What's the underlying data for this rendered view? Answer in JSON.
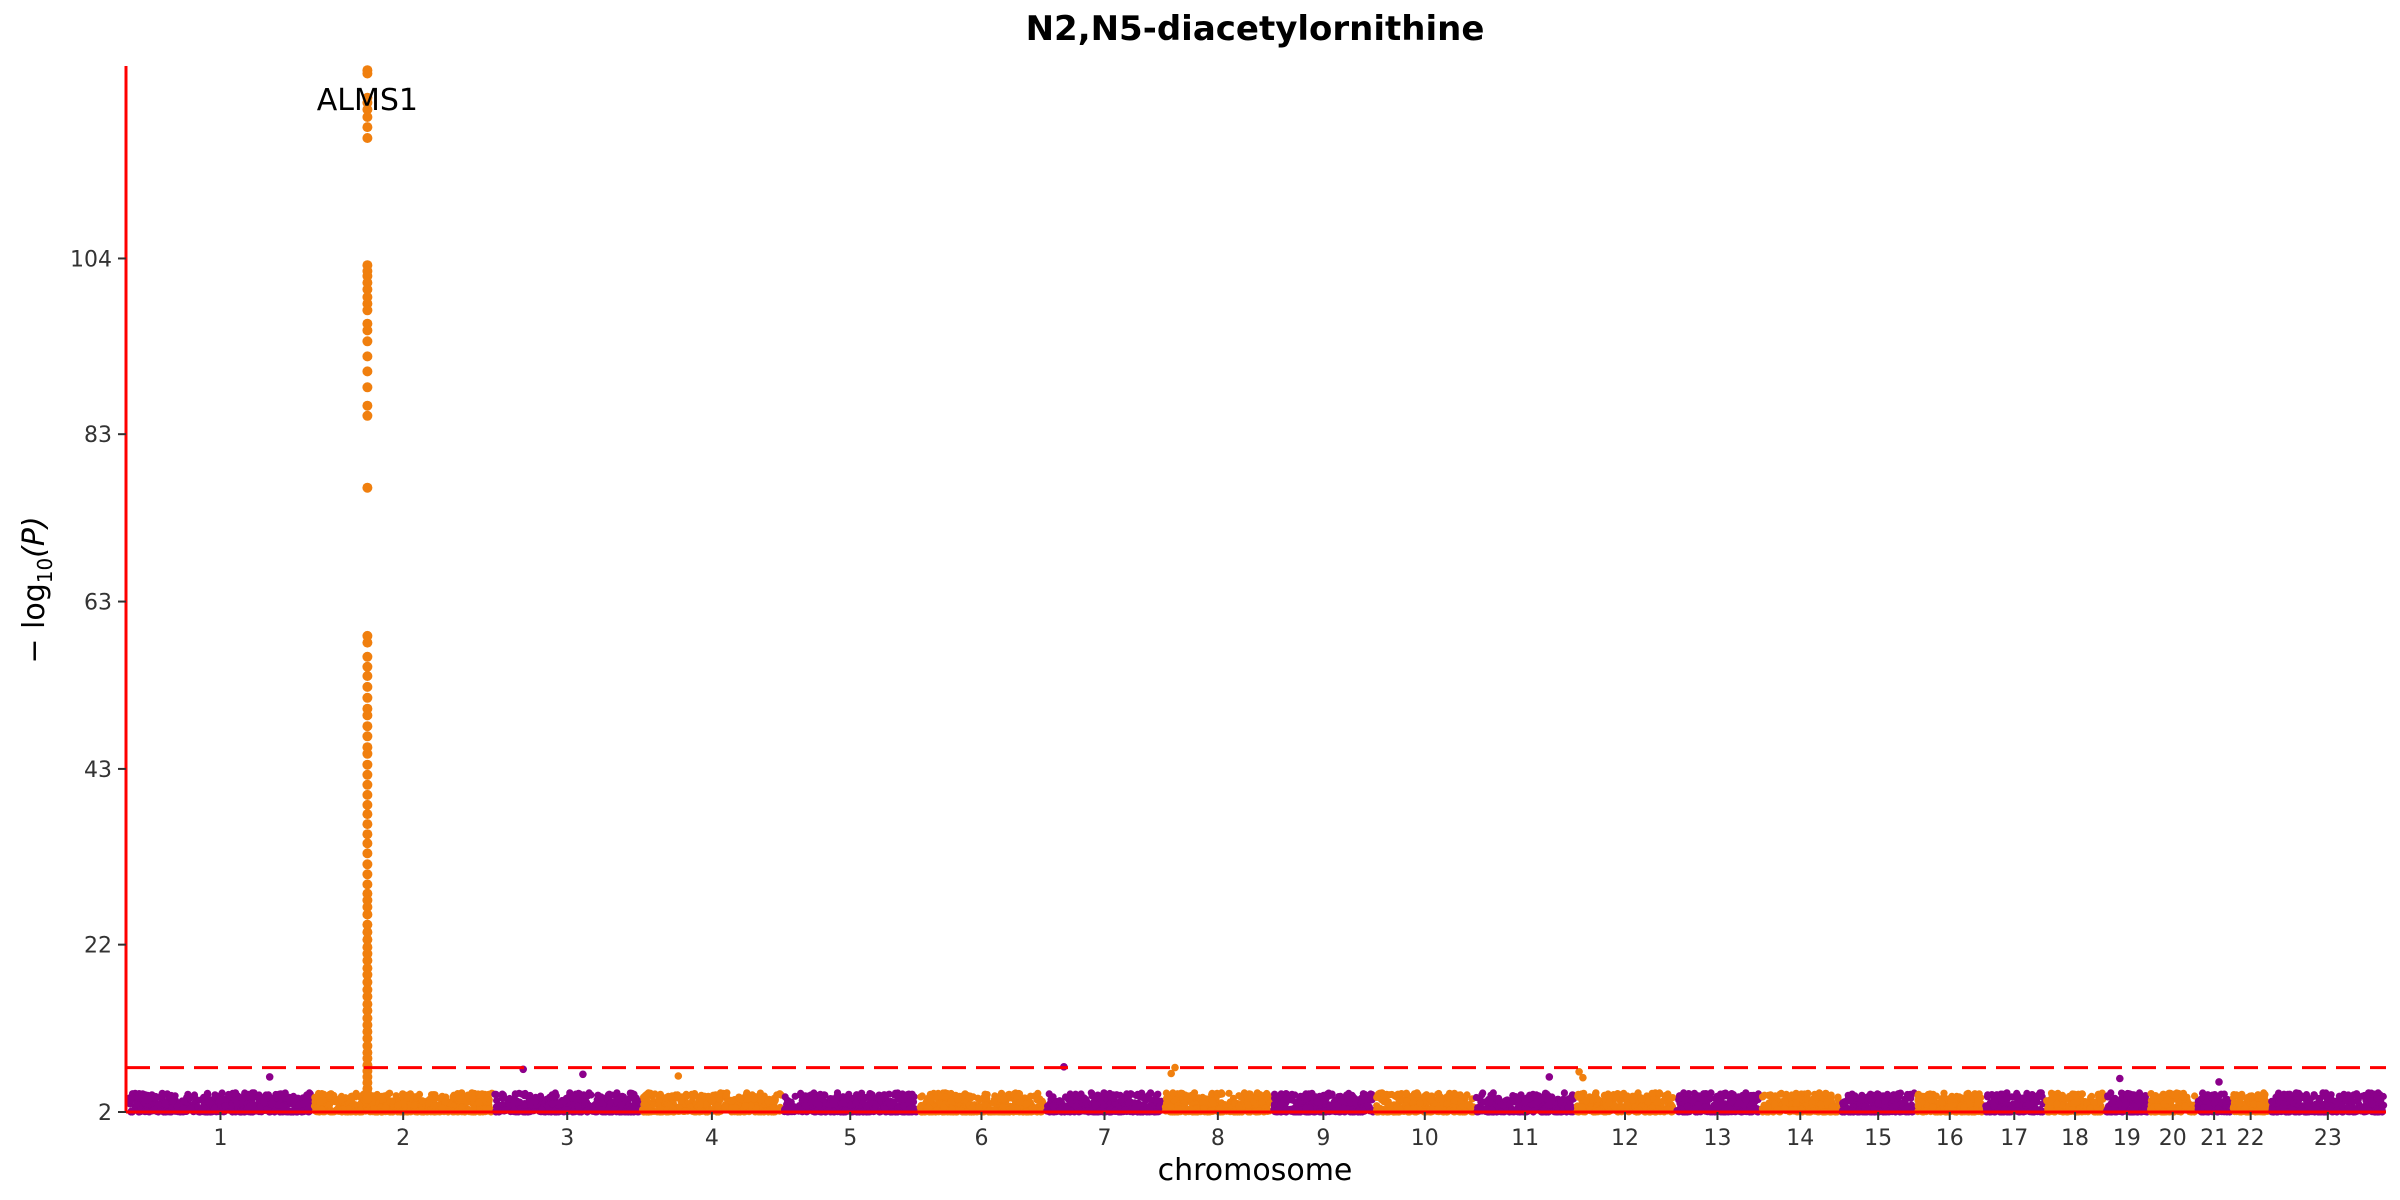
{
  "chart_data": {
    "type": "scatter",
    "subtype": "manhattan",
    "title": "N2,N5-diacetylornithine",
    "xlabel": "chromosome",
    "ylabel": "−log10(P)",
    "ylabel_parts": {
      "prefix": "− log",
      "subscript": "10",
      "suffix": "(P)"
    },
    "ylim": [
      2,
      127
    ],
    "yticks": [
      2,
      22,
      43,
      63,
      83,
      104
    ],
    "significance_threshold": 7.3,
    "grid": false,
    "legend": "none",
    "colors": {
      "odd": "#8B008B",
      "even": "#F07F0E",
      "axis": "#FF0000",
      "threshold": "#FF0000"
    },
    "chromosomes": [
      {
        "label": "1",
        "start": 0,
        "end": 248
      },
      {
        "label": "2",
        "start": 248,
        "end": 490
      },
      {
        "label": "3",
        "start": 490,
        "end": 688
      },
      {
        "label": "4",
        "start": 688,
        "end": 878
      },
      {
        "label": "5",
        "start": 878,
        "end": 1059
      },
      {
        "label": "6",
        "start": 1059,
        "end": 1230
      },
      {
        "label": "7",
        "start": 1230,
        "end": 1389
      },
      {
        "label": "8",
        "start": 1389,
        "end": 1534
      },
      {
        "label": "9",
        "start": 1534,
        "end": 1672
      },
      {
        "label": "10",
        "start": 1672,
        "end": 1806
      },
      {
        "label": "11",
        "start": 1806,
        "end": 1941
      },
      {
        "label": "12",
        "start": 1941,
        "end": 2074
      },
      {
        "label": "13",
        "start": 2074,
        "end": 2189
      },
      {
        "label": "14",
        "start": 2189,
        "end": 2296
      },
      {
        "label": "15",
        "start": 2296,
        "end": 2398
      },
      {
        "label": "16",
        "start": 2398,
        "end": 2488
      },
      {
        "label": "17",
        "start": 2488,
        "end": 2571
      },
      {
        "label": "18",
        "start": 2571,
        "end": 2651
      },
      {
        "label": "19",
        "start": 2651,
        "end": 2710
      },
      {
        "label": "20",
        "start": 2710,
        "end": 2774
      },
      {
        "label": "21",
        "start": 2774,
        "end": 2821
      },
      {
        "label": "22",
        "start": 2821,
        "end": 2872
      },
      {
        "label": "23",
        "start": 2872,
        "end": 3028
      }
    ],
    "peaks": [
      {
        "chromosome": "2",
        "position": 73,
        "label": "ALMS1",
        "values": [
          126.5,
          126.1,
          123.2,
          122.6,
          121.8,
          120.9,
          119.7,
          118.4,
          103.2,
          102.5,
          101.9,
          101.1,
          100.3,
          99.4,
          98.6,
          97.8,
          96.2,
          95.4,
          94.1,
          92.3,
          90.5,
          88.6,
          86.4,
          85.2,
          76.6,
          58.9,
          58.1,
          56.4,
          55.2,
          54.1,
          52.8,
          51.5,
          50.2,
          49.4,
          48.1,
          46.9,
          45.6,
          44.8,
          43.5,
          42.3,
          41.1,
          39.9,
          38.7,
          37.6,
          36.4,
          35.2,
          34.1,
          32.9,
          31.6,
          30.4,
          29.2,
          28.1,
          27.3,
          26.5,
          25.6,
          24.4,
          23.5,
          22.6,
          21.7,
          20.9,
          20.1,
          19.2,
          18.4,
          17.5,
          16.6,
          15.8,
          14.9,
          14.1,
          13.2,
          12.4,
          11.6,
          10.8,
          9.9,
          9.1,
          8.4,
          7.6,
          6.9,
          6.2,
          5.5,
          4.8,
          4.2,
          3.6
        ]
      }
    ],
    "minor_peaks": [
      {
        "chromosome": "1",
        "position": 190,
        "value": 6.2
      },
      {
        "chromosome": "3",
        "position": 40,
        "value": 7.1
      },
      {
        "chromosome": "3",
        "position": 120,
        "value": 6.5
      },
      {
        "chromosome": "4",
        "position": 50,
        "value": 6.3
      },
      {
        "chromosome": "7",
        "position": 25,
        "value": 7.4
      },
      {
        "chromosome": "8",
        "position": 15,
        "value": 7.3
      },
      {
        "chromosome": "8",
        "position": 10,
        "value": 6.6
      },
      {
        "chromosome": "11",
        "position": 100,
        "value": 6.2
      },
      {
        "chromosome": "12",
        "position": 5,
        "value": 6.8
      },
      {
        "chromosome": "12",
        "position": 10,
        "value": 6.1
      },
      {
        "chromosome": "19",
        "position": 20,
        "value": 6.0
      },
      {
        "chromosome": "21",
        "position": 30,
        "value": 5.6
      }
    ]
  }
}
